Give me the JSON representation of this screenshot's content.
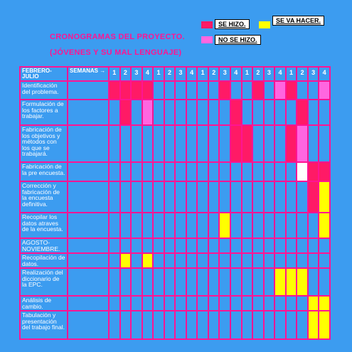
{
  "title": {
    "line1": "CRONOGRAMAS DEL PROYECTO.",
    "line2": "(JÓVENES Y SU MAL  LENGUAJE)"
  },
  "legend": {
    "done": "SE HIZO.",
    "todo": "SE VA HACER.",
    "not_done": "NO SE HIZO.",
    "colors": {
      "done": "#ff1a66",
      "todo": "#ffff00",
      "not_done": "#ff66e0",
      "white": "#ffffff"
    }
  },
  "table": {
    "corner_label": "FEBRERO-JULIO",
    "weeks_label": "SEMANAS →",
    "weeks": [
      "1",
      "2",
      "3",
      "4",
      "1",
      "2",
      "3",
      "4",
      "1",
      "2",
      "3",
      "4",
      "1",
      "2",
      "3",
      "4",
      "1",
      "2",
      "3",
      "4"
    ],
    "rows": [
      {
        "task": "Identificación del problema.",
        "cells": [
          "d",
          "d",
          "d",
          "d",
          "",
          "",
          "",
          "",
          "",
          "",
          "d",
          "",
          "",
          "d",
          "",
          "n",
          "d",
          "",
          "",
          "n"
        ]
      },
      {
        "task": "Formulación de los factores a trabajar.",
        "cells": [
          "",
          "d",
          "",
          "n",
          "",
          "",
          "",
          "",
          "",
          "",
          "",
          "d",
          "",
          "",
          "",
          "",
          "",
          "d",
          "",
          ""
        ]
      },
      {
        "task": "Fabricación de los objetivos y métodos con los que se trabajará.",
        "cells": [
          "",
          "",
          "",
          "",
          "",
          "",
          "",
          "",
          "",
          "",
          "",
          "d",
          "d",
          "",
          "",
          "",
          "d",
          "n",
          "",
          ""
        ]
      },
      {
        "task": "Fabricación de la pre encuesta.",
        "cells": [
          "",
          "",
          "",
          "",
          "",
          "",
          "",
          "",
          "",
          "",
          "",
          "",
          "",
          "",
          "",
          "",
          "",
          "w",
          "d",
          "d"
        ]
      },
      {
        "task": "Corrección y fabricación de la encuesta definitiva.",
        "cells": [
          "",
          "",
          "",
          "",
          "",
          "",
          "",
          "",
          "",
          "",
          "",
          "",
          "",
          "",
          "",
          "",
          "",
          "",
          "d",
          "y"
        ]
      },
      {
        "task": "Recopilar los datos atraves de la encuesta.",
        "cells": [
          "",
          "",
          "",
          "",
          "",
          "",
          "",
          "",
          "",
          "",
          "y",
          "",
          "",
          "",
          "",
          "",
          "",
          "",
          "",
          "y"
        ]
      },
      {
        "task": "AGOSTO-NOVIEMBRE.",
        "cells": [
          "",
          "",
          "",
          "",
          "",
          "",
          "",
          "",
          "",
          "",
          "",
          "",
          "",
          "",
          "",
          "",
          "",
          "",
          "",
          ""
        ]
      },
      {
        "task": "Recopilación de datos.",
        "cells": [
          "",
          "y",
          "",
          "y",
          "",
          "",
          "",
          "",
          "",
          "",
          "",
          "",
          "",
          "",
          "",
          "",
          "",
          "",
          "",
          ""
        ]
      },
      {
        "task": "Realización del diccionario de la EPC.",
        "cells": [
          "",
          "",
          "",
          "",
          "",
          "",
          "",
          "",
          "",
          "",
          "",
          "",
          "",
          "",
          "",
          "y",
          "y",
          "y",
          "",
          ""
        ]
      },
      {
        "task": "Análisis de cambio.",
        "cells": [
          "",
          "",
          "",
          "",
          "",
          "",
          "",
          "",
          "",
          "",
          "",
          "",
          "",
          "",
          "",
          "",
          "",
          "",
          "y",
          "y"
        ]
      },
      {
        "task": "Tabulación y presentación del trabajo final.",
        "cells": [
          "",
          "",
          "",
          "",
          "",
          "",
          "",
          "",
          "",
          "",
          "",
          "",
          "",
          "",
          "",
          "",
          "",
          "",
          "y",
          "y"
        ]
      }
    ]
  }
}
